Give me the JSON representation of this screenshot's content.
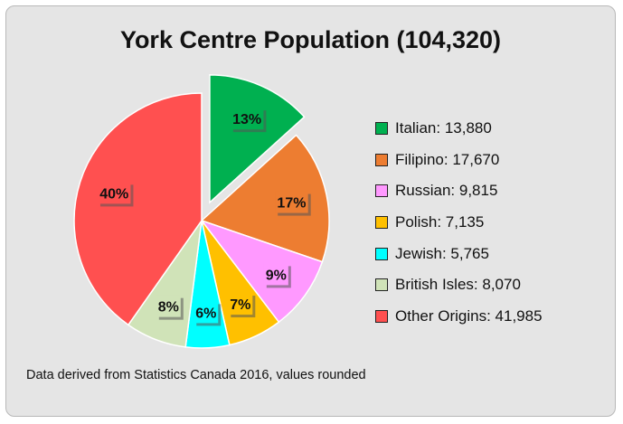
{
  "chart_data": {
    "type": "pie",
    "title": "York Centre Population (104,320)",
    "note": "Data derived from Statistics Canada 2016, values rounded",
    "legend_position": "right",
    "exploded_slice": "Italian",
    "slices": [
      {
        "label": "Italian",
        "value": 13880,
        "value_text": "13,880",
        "percent_label": "13%",
        "color": "#00b050"
      },
      {
        "label": "Filipino",
        "value": 17670,
        "value_text": "17,670",
        "percent_label": "17%",
        "color": "#ed7d31"
      },
      {
        "label": "Russian",
        "value": 9815,
        "value_text": "9,815",
        "percent_label": "9%",
        "color": "#ff99ff"
      },
      {
        "label": "Polish",
        "value": 7135,
        "value_text": "7,135",
        "percent_label": "7%",
        "color": "#ffc000"
      },
      {
        "label": "Jewish",
        "value": 5765,
        "value_text": "5,765",
        "percent_label": "6%",
        "color": "#00ffff"
      },
      {
        "label": "British Isles",
        "value": 8070,
        "value_text": "8,070",
        "percent_label": "8%",
        "color": "#d0e3b8"
      },
      {
        "label": "Other Origins",
        "value": 41985,
        "value_text": "41,985",
        "percent_label": "40%",
        "color": "#ff5050"
      }
    ]
  }
}
